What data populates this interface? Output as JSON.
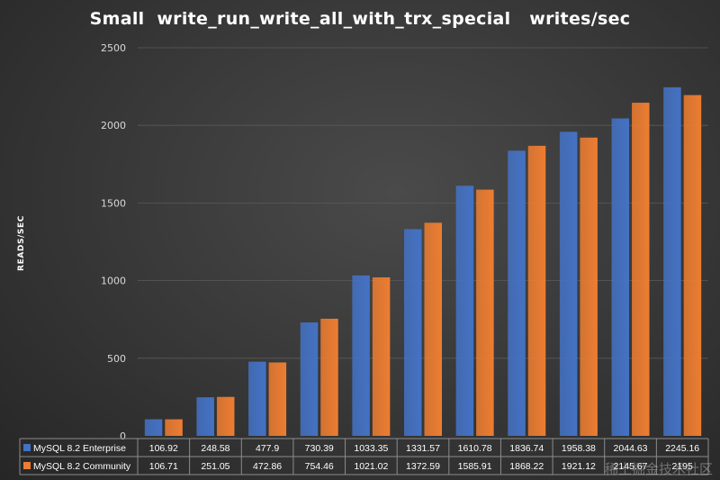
{
  "chart_data": {
    "type": "bar",
    "title": "Small  write_run_write_all_with_trx_special   writes/sec",
    "ylabel": "READS/SEC",
    "xlabel": "",
    "ylim": [
      0,
      2500
    ],
    "yticks": [
      0,
      500,
      1000,
      1500,
      2000,
      2500
    ],
    "grid": true,
    "legend": "data-table",
    "categories": [
      "",
      "",
      "",
      "",
      "",
      "",
      "",
      "",
      "",
      "",
      ""
    ],
    "series": [
      {
        "name": "MySQL 8.2 Enterprise",
        "color": "#4472c4",
        "values": [
          106.92,
          248.58,
          477.9,
          730.39,
          1033.35,
          1331.57,
          1610.78,
          1836.74,
          1958.38,
          2044.63,
          2245.16
        ],
        "labels": [
          "106.92",
          "248.58",
          "477.9",
          "730.39",
          "1033.35",
          "1331.57",
          "1610.78",
          "1836.74",
          "1958.38",
          "2044.63",
          "2245.16"
        ]
      },
      {
        "name": "MySQL 8.2 Community",
        "color": "#ed7d31",
        "values": [
          106.71,
          251.05,
          472.86,
          754.46,
          1021.02,
          1372.59,
          1585.91,
          1868.22,
          1921.12,
          2145.67,
          2195
        ],
        "labels": [
          "106.71",
          "251.05",
          "472.86",
          "754.46",
          "1021.02",
          "1372.59",
          "1585.91",
          "1868.22",
          "1921.12",
          "2145.67",
          "2195"
        ]
      }
    ]
  },
  "watermark": "稀土掘金技术社区"
}
